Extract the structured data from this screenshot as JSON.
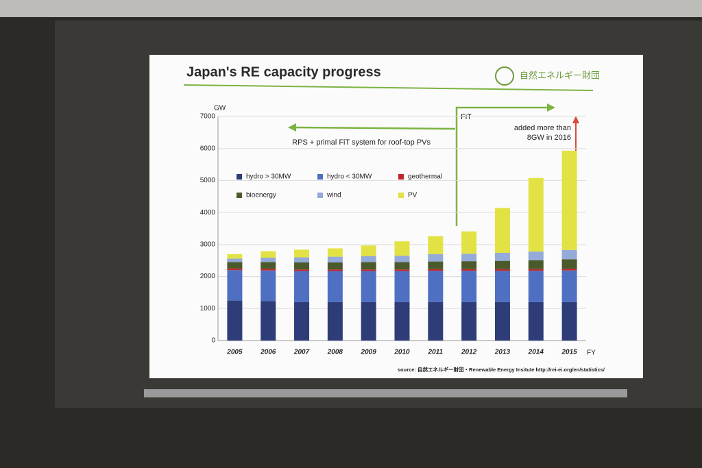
{
  "chart_data": {
    "type": "stacked_bar",
    "title": "Japan's RE capacity progress",
    "logo": "自然エネルギー財団",
    "y_label": "GW",
    "x_label": "FY",
    "annotations": [
      "FiT",
      "RPS + primal FiT system for roof-top PVs",
      "added more than",
      "8GW in 2016"
    ],
    "source": "source: 自然エネルギー財団・Renewable Energy Insitute  http://rei-ei.org/en/statistics/",
    "categories": [
      "2005",
      "2006",
      "2007",
      "2008",
      "2009",
      "2010",
      "2011",
      "2012",
      "2013",
      "2014",
      "2015"
    ],
    "series": [
      {
        "name": "hydro > 30MW",
        "color": "#2e3d78",
        "values": [
          1250,
          1230,
          1200,
          1200,
          1200,
          1200,
          1200,
          1200,
          1200,
          1200,
          1200
        ]
      },
      {
        "name": "hydro < 30MW",
        "color": "#4f70c2",
        "values": [
          950,
          960,
          970,
          970,
          970,
          970,
          980,
          980,
          980,
          980,
          990
        ]
      },
      {
        "name": "geothermal",
        "color": "#c0272d",
        "values": [
          50,
          50,
          50,
          50,
          50,
          50,
          50,
          50,
          50,
          50,
          50
        ]
      },
      {
        "name": "bioenergy",
        "color": "#4b5a2a",
        "values": [
          200,
          210,
          220,
          220,
          230,
          230,
          240,
          250,
          260,
          280,
          300
        ]
      },
      {
        "name": "wind",
        "color": "#94aad8",
        "values": [
          110,
          140,
          160,
          180,
          190,
          200,
          230,
          230,
          250,
          270,
          290
        ]
      },
      {
        "name": "PV",
        "color": "#e2e244",
        "values": [
          140,
          200,
          240,
          260,
          330,
          450,
          560,
          700,
          1400,
          2300,
          3100
        ]
      }
    ],
    "ylim": [
      0,
      7000
    ],
    "yticks": [
      0,
      1000,
      2000,
      3000,
      4000,
      5000,
      6000,
      7000
    ],
    "grid": true
  }
}
